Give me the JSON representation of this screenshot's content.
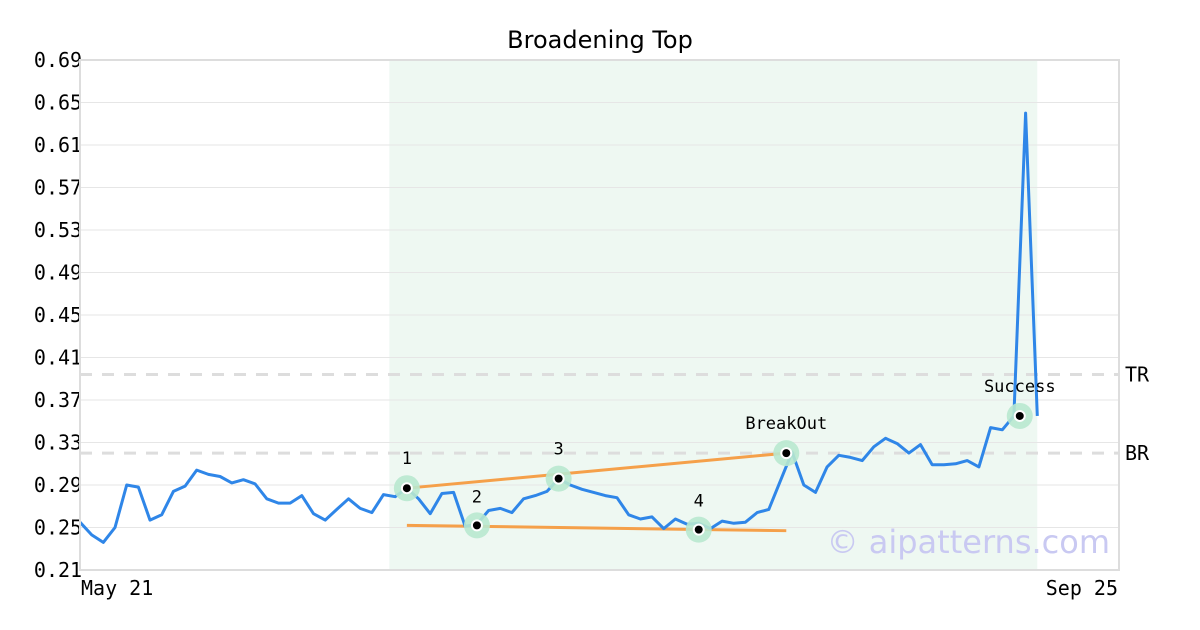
{
  "chart_data": {
    "type": "line",
    "title": "Broadening Top",
    "xlabel": "",
    "ylabel": "",
    "ylim": [
      0.21,
      0.69
    ],
    "yticks": [
      "0.21",
      "0.25",
      "0.29",
      "0.33",
      "0.37",
      "0.41",
      "0.45",
      "0.49",
      "0.53",
      "0.57",
      "0.61",
      "0.65",
      "0.69"
    ],
    "xtick_labels": [
      "May 21",
      "Sep 25"
    ],
    "grid": true,
    "x_range": [
      0,
      89
    ],
    "series": [
      {
        "values": [
          0.255,
          0.243,
          0.236,
          0.25,
          0.29,
          0.288,
          0.257,
          0.262,
          0.284,
          0.289,
          0.304,
          0.3,
          0.298,
          0.292,
          0.295,
          0.291,
          0.277,
          0.273,
          0.273,
          0.28,
          0.263,
          0.257,
          0.267,
          0.277,
          0.268,
          0.264,
          0.281,
          0.279,
          0.287,
          0.277,
          0.263,
          0.282,
          0.283,
          0.251,
          0.253,
          0.266,
          0.268,
          0.264,
          0.277,
          0.28,
          0.284,
          0.296,
          0.29,
          0.286,
          0.283,
          0.28,
          0.278,
          0.262,
          0.258,
          0.26,
          0.249,
          0.258,
          0.253,
          0.254,
          0.249,
          0.256,
          0.254,
          0.255,
          0.264,
          0.267,
          0.294,
          0.321,
          0.29,
          0.283,
          0.307,
          0.318,
          0.316,
          0.313,
          0.326,
          0.334,
          0.329,
          0.32,
          0.328,
          0.309,
          0.309,
          0.31,
          0.313,
          0.307,
          0.344,
          0.342,
          0.355,
          0.64,
          0.355
        ],
        "color": "#2f86e8"
      }
    ],
    "shaded_region": {
      "x_start": 26.5,
      "x_end": 82,
      "color": "#eef8f2"
    },
    "trendlines": [
      {
        "x": [
          28,
          60.5
        ],
        "y": [
          0.287,
          0.32
        ],
        "color": "#f5a04a"
      },
      {
        "x": [
          28,
          60.5
        ],
        "y": [
          0.252,
          0.247
        ],
        "color": "#f5a04a"
      }
    ],
    "points": [
      {
        "label": "1",
        "x": 28,
        "y": 0.287
      },
      {
        "label": "2",
        "x": 34,
        "y": 0.252
      },
      {
        "label": "3",
        "x": 41,
        "y": 0.296
      },
      {
        "label": "4",
        "x": 53,
        "y": 0.248
      },
      {
        "label": "BreakOut",
        "x": 60.5,
        "y": 0.32
      },
      {
        "label": "Success",
        "x": 80.5,
        "y": 0.355
      }
    ],
    "levels": [
      {
        "label": "TR",
        "y": 0.394
      },
      {
        "label": "BR",
        "y": 0.32
      }
    ],
    "watermark": "© aipatterns.com"
  },
  "colors": {
    "line": "#2f86e8",
    "trend": "#f5a04a",
    "marker_halo": "#b8e8cf",
    "shade": "#eef8f2",
    "level": "#dddddd"
  }
}
